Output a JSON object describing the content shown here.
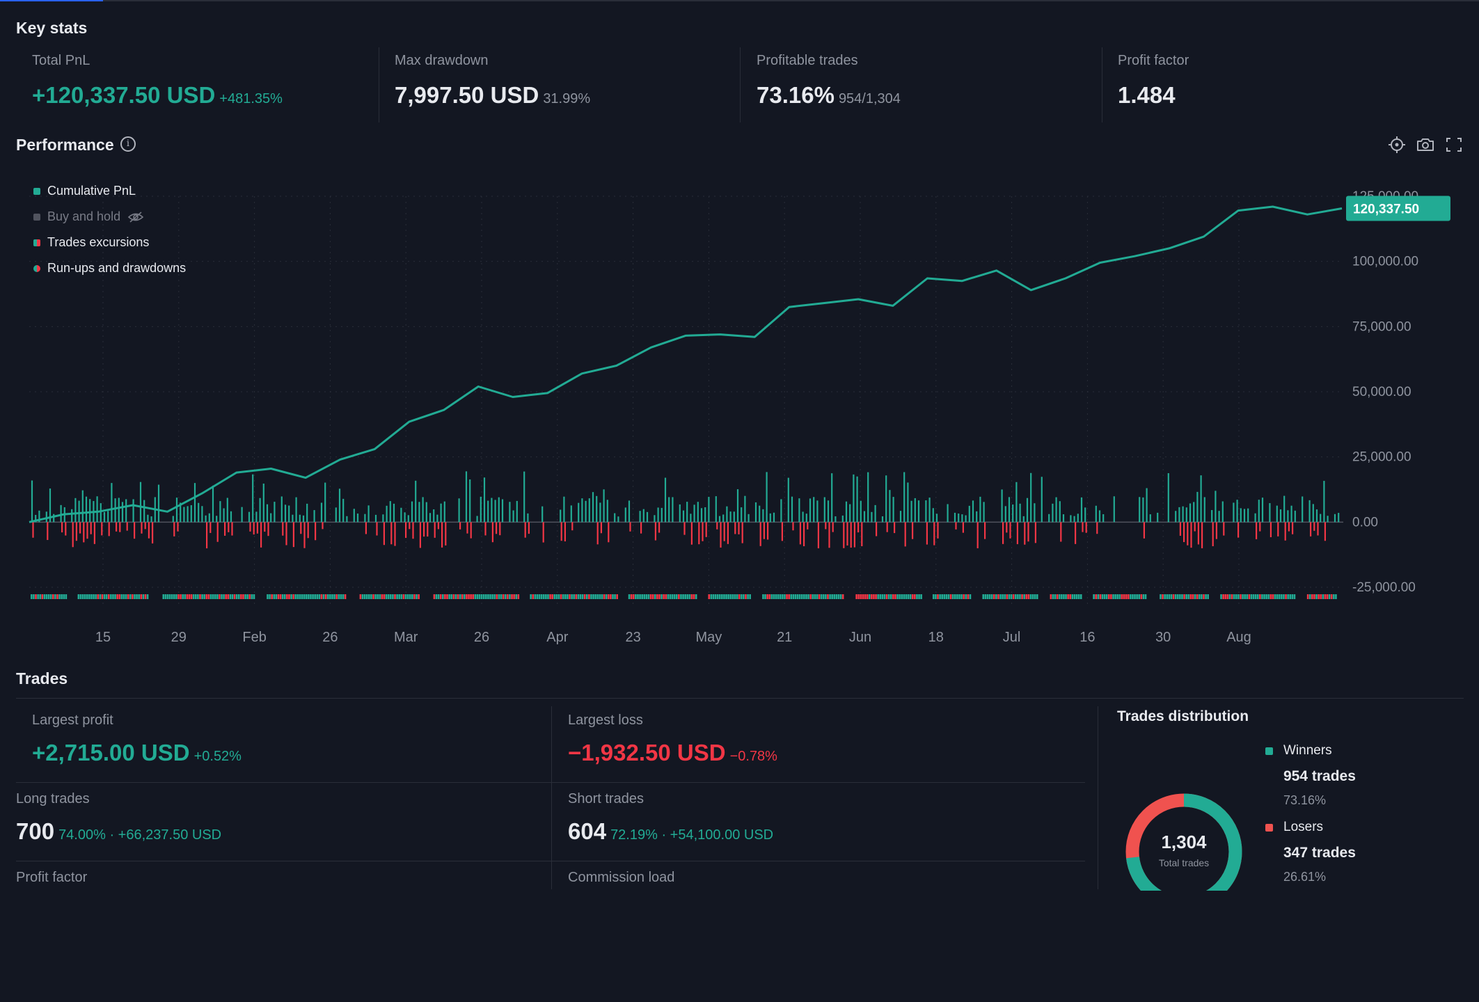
{
  "key_stats": {
    "title": "Key stats",
    "total_pnl": {
      "label": "Total PnL",
      "value": "+120,337.50 USD",
      "sub": "+481.35%"
    },
    "max_drawdown": {
      "label": "Max drawdown",
      "value": "7,997.50 USD",
      "sub": "31.99%"
    },
    "profitable_trades": {
      "label": "Profitable trades",
      "value": "73.16%",
      "sub": "954/1,304"
    },
    "profit_factor": {
      "label": "Profit factor",
      "value": "1.484"
    }
  },
  "performance": {
    "title": "Performance",
    "info_icon": "info-icon",
    "toolbar_icons": [
      "crosshair-icon",
      "camera-icon",
      "fullscreen-icon"
    ],
    "legend": [
      {
        "label": "Cumulative PnL",
        "color": "#22ab94",
        "visible": true
      },
      {
        "label": "Buy and hold",
        "color": "#50535e",
        "visible": false,
        "icon": "eye-crossed-icon"
      },
      {
        "label": "Trades excursions",
        "color": "#f23645",
        "visible": true
      },
      {
        "label": "Run-ups and drawdowns",
        "color": "#22ab94",
        "visible": true
      }
    ],
    "last_value_badge": "120,337.50"
  },
  "chart_data": {
    "type": "line",
    "series": [
      {
        "name": "Cumulative PnL",
        "color": "#22ab94",
        "x": [
          0,
          2,
          4,
          6,
          8,
          10,
          12,
          14,
          16,
          18,
          20,
          22,
          24,
          26,
          28,
          30,
          32,
          34,
          36,
          38,
          40,
          42,
          44,
          46,
          48,
          50,
          52,
          54,
          56,
          58,
          60,
          62,
          64,
          66,
          68,
          70,
          72,
          74,
          76,
          78,
          80,
          82,
          84,
          86,
          88,
          90,
          92,
          94,
          96,
          98,
          100
        ],
        "values": [
          0,
          3000,
          4000,
          6500,
          4000,
          11000,
          19000,
          20500,
          17000,
          24000,
          28000,
          38500,
          43000,
          52000,
          48000,
          49500,
          57000,
          60000,
          67000,
          71500,
          72000,
          71000,
          82500,
          84000,
          85500,
          83000,
          93500,
          92500,
          96500,
          89000,
          93500,
          99500,
          102000,
          105000,
          109500,
          119500,
          121000,
          118000,
          120337.5,
          120337.5,
          120337.5,
          120337.5,
          120337.5,
          120337.5,
          120337.5,
          120337.5,
          120337.5,
          120337.5,
          120337.5,
          120337.5,
          120337.5
        ]
      }
    ],
    "x_tick_labels": [
      "15",
      "29",
      "Feb",
      "26",
      "Mar",
      "26",
      "Apr",
      "23",
      "May",
      "21",
      "Jun",
      "18",
      "Jul",
      "16",
      "30",
      "Aug"
    ],
    "y_tick_labels": [
      "125,000.00",
      "100,000.00",
      "75,000.00",
      "50,000.00",
      "25,000.00",
      "0.00",
      "-25,000.00"
    ],
    "ylim": [
      -25000,
      125000
    ],
    "grid": true,
    "excursions_note": "per-trade run-up (green) and drawdown (red) bars below the PnL line"
  },
  "trades": {
    "title": "Trades",
    "largest_profit": {
      "label": "Largest profit",
      "value": "+2,715.00 USD",
      "sub": "+0.52%"
    },
    "largest_loss": {
      "label": "Largest loss",
      "value": "−1,932.50 USD",
      "sub": "−0.78%"
    },
    "long_trades": {
      "label": "Long trades",
      "value": "700",
      "sub": "74.00% · +66,237.50 USD"
    },
    "short_trades": {
      "label": "Short trades",
      "value": "604",
      "sub": "72.19% · +54,100.00 USD"
    },
    "profit_factor_label": "Profit factor",
    "commission_load_label": "Commission load"
  },
  "distribution": {
    "title": "Trades distribution",
    "total": "1,304",
    "total_caption": "Total trades",
    "winners": {
      "label": "Winners",
      "count": "954 trades",
      "pct": "73.16%",
      "color": "#22ab94",
      "fraction": 0.7316
    },
    "losers": {
      "label": "Losers",
      "count": "347 trades",
      "pct": "26.61%",
      "color": "#f0524f",
      "fraction": 0.2661
    }
  }
}
